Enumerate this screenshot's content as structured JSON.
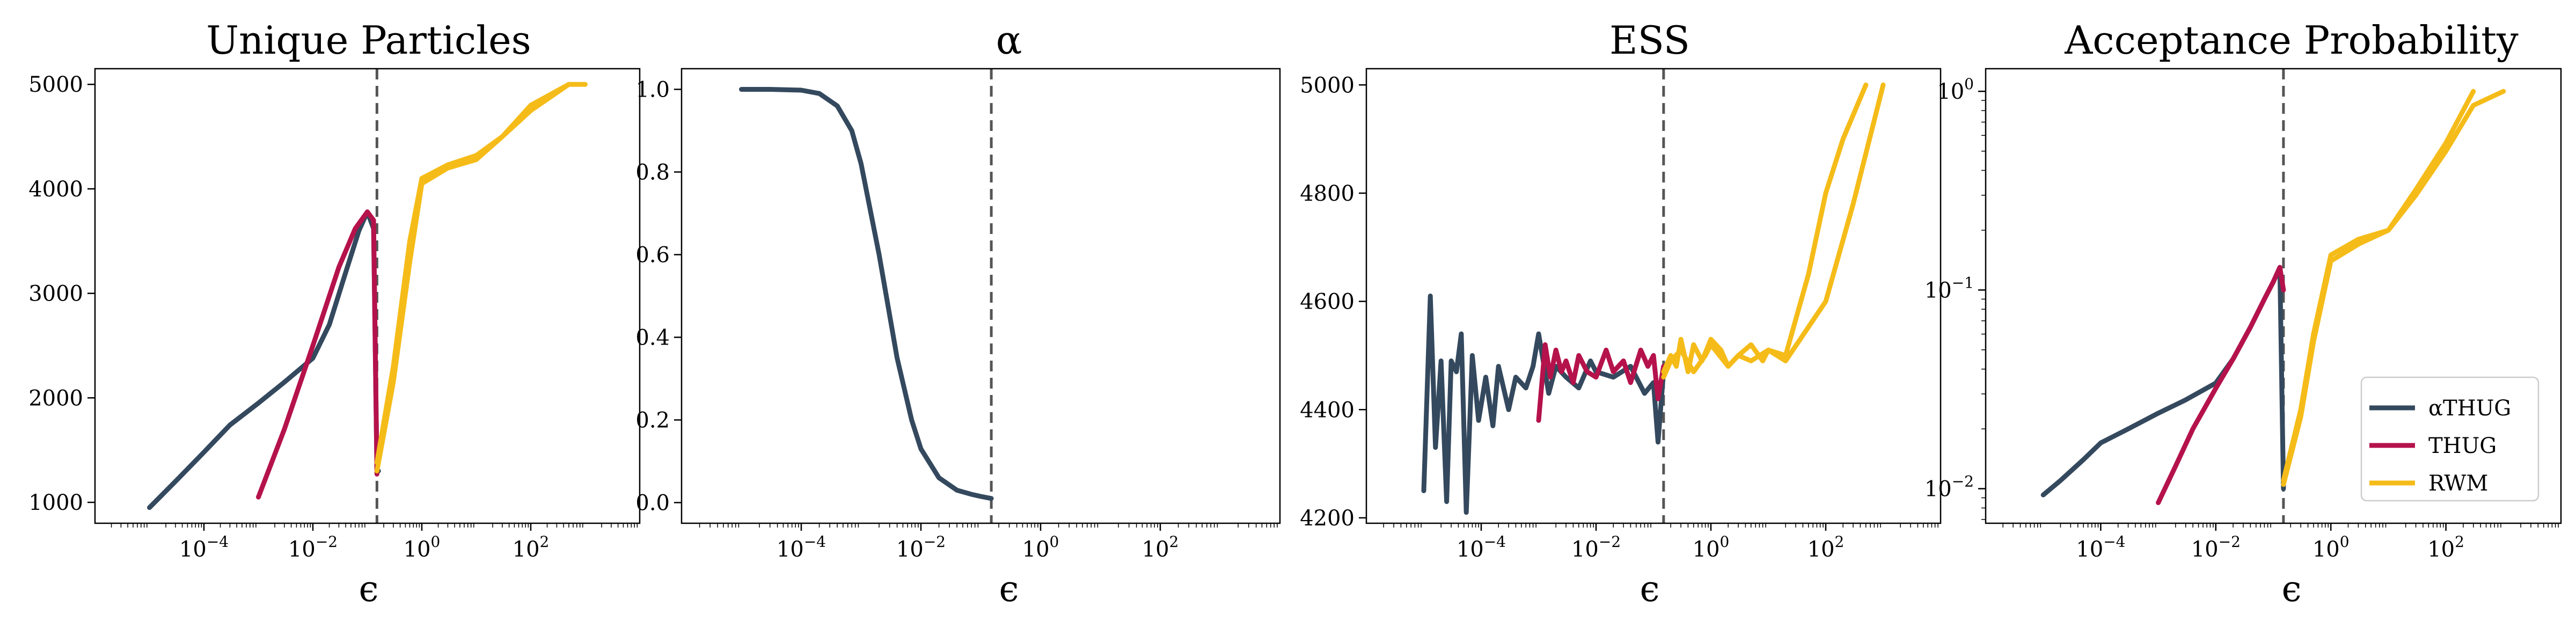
{
  "colors": {
    "alpha_thug": "#34495e",
    "thug": "#b5124b",
    "rwm": "#f5bc19"
  },
  "legend": [
    "αTHUG",
    "THUG",
    "RWM"
  ],
  "chart_data": [
    {
      "type": "line",
      "title": "Unique Particles",
      "xlabel": "ϵ",
      "xscale": "log",
      "yscale": "linear",
      "xlim": [
        1e-06,
        10000
      ],
      "ylim": [
        800,
        5150
      ],
      "xticks": [
        -4,
        -2,
        0,
        2
      ],
      "yticks": [
        1000,
        2000,
        3000,
        4000,
        5000
      ],
      "ytick_labels": [
        "1000",
        "2000",
        "3000",
        "4000",
        "5000"
      ],
      "vline": 0.15,
      "series": [
        {
          "key": "alpha_thug",
          "x": [
            1e-05,
            3e-05,
            0.0001,
            0.0003,
            0.001,
            0.003,
            0.01,
            0.02,
            0.04,
            0.07,
            0.1,
            0.13,
            0.15,
            0.16
          ],
          "y": [
            950,
            1200,
            1480,
            1740,
            1950,
            2150,
            2380,
            2700,
            3200,
            3600,
            3780,
            3620,
            1300,
            1300
          ]
        },
        {
          "key": "thug",
          "x": [
            0.001,
            0.003,
            0.01,
            0.03,
            0.06,
            0.1,
            0.13,
            0.15
          ],
          "y": [
            1050,
            1700,
            2500,
            3250,
            3620,
            3780,
            3700,
            1270
          ]
        },
        {
          "key": "rwm",
          "x": [
            0.15,
            0.3,
            0.6,
            1,
            3,
            10,
            30,
            100,
            500,
            1000
          ],
          "y": [
            1380,
            2300,
            3500,
            4100,
            4230,
            4320,
            4500,
            4750,
            5000,
            5000
          ]
        },
        {
          "key": "rwm",
          "x": [
            0.15,
            0.3,
            0.6,
            1,
            3,
            10,
            30,
            100,
            500
          ],
          "y": [
            1300,
            2150,
            3300,
            4050,
            4200,
            4280,
            4500,
            4800,
            5000
          ]
        }
      ]
    },
    {
      "type": "line",
      "title": "α",
      "xlabel": "ϵ",
      "xscale": "log",
      "yscale": "linear",
      "xlim": [
        1e-06,
        10000
      ],
      "ylim": [
        -0.05,
        1.05
      ],
      "xticks": [
        -4,
        -2,
        0,
        2
      ],
      "yticks": [
        0,
        0.2,
        0.4,
        0.6,
        0.8,
        1.0
      ],
      "ytick_labels": [
        "0.0",
        "0.2",
        "0.4",
        "0.6",
        "0.8",
        "1.0"
      ],
      "vline": 0.15,
      "series": [
        {
          "key": "alpha_thug",
          "x": [
            1e-05,
            3e-05,
            0.0001,
            0.0002,
            0.0004,
            0.0007,
            0.001,
            0.002,
            0.004,
            0.007,
            0.01,
            0.02,
            0.04,
            0.07,
            0.1,
            0.15
          ],
          "y": [
            1.0,
            1.0,
            0.998,
            0.99,
            0.96,
            0.9,
            0.82,
            0.6,
            0.35,
            0.2,
            0.13,
            0.06,
            0.03,
            0.02,
            0.015,
            0.01
          ]
        }
      ]
    },
    {
      "type": "line",
      "title": "ESS",
      "xlabel": "ϵ",
      "xscale": "log",
      "yscale": "linear",
      "xlim": [
        1e-06,
        10000
      ],
      "ylim": [
        4190,
        5030
      ],
      "xticks": [
        -4,
        -2,
        0,
        2
      ],
      "yticks": [
        4200,
        4400,
        4600,
        4800,
        5000
      ],
      "ytick_labels": [
        "4200",
        "4400",
        "4600",
        "4800",
        "5000"
      ],
      "vline": 0.15,
      "series": [
        {
          "key": "alpha_thug",
          "x": [
            1e-05,
            1.3e-05,
            1.6e-05,
            2e-05,
            2.5e-05,
            3e-05,
            3.7e-05,
            4.5e-05,
            5.5e-05,
            7e-05,
            9e-05,
            0.00012,
            0.00016,
            0.0002,
            0.0003,
            0.0004,
            0.0006,
            0.0008,
            0.001,
            0.0015,
            0.002,
            0.003,
            0.005,
            0.008,
            0.01,
            0.02,
            0.04,
            0.07,
            0.1,
            0.12,
            0.15
          ],
          "y": [
            4250,
            4610,
            4330,
            4490,
            4230,
            4490,
            4470,
            4540,
            4210,
            4500,
            4380,
            4460,
            4370,
            4480,
            4400,
            4460,
            4440,
            4480,
            4540,
            4430,
            4480,
            4460,
            4440,
            4490,
            4470,
            4460,
            4480,
            4430,
            4450,
            4340,
            4470
          ]
        },
        {
          "key": "thug",
          "x": [
            0.001,
            0.0013,
            0.0016,
            0.002,
            0.0025,
            0.003,
            0.004,
            0.005,
            0.007,
            0.01,
            0.015,
            0.02,
            0.03,
            0.04,
            0.06,
            0.08,
            0.1,
            0.12,
            0.15
          ],
          "y": [
            4380,
            4520,
            4460,
            4510,
            4470,
            4490,
            4450,
            4500,
            4470,
            4460,
            4510,
            4470,
            4490,
            4450,
            4510,
            4480,
            4500,
            4420,
            4480
          ]
        },
        {
          "key": "rwm",
          "x": [
            0.15,
            0.2,
            0.25,
            0.3,
            0.4,
            0.5,
            0.7,
            1,
            1.5,
            2,
            3,
            5,
            8,
            10,
            20,
            50,
            100,
            200,
            500
          ],
          "y": [
            4470,
            4500,
            4480,
            4530,
            4470,
            4520,
            4490,
            4530,
            4510,
            4480,
            4500,
            4520,
            4490,
            4510,
            4500,
            4650,
            4800,
            4900,
            5000
          ]
        },
        {
          "key": "rwm",
          "x": [
            0.15,
            0.2,
            0.3,
            0.5,
            0.8,
            1,
            2,
            3,
            5,
            10,
            20,
            100,
            300,
            1000
          ],
          "y": [
            4460,
            4490,
            4510,
            4470,
            4500,
            4520,
            4480,
            4500,
            4490,
            4510,
            4490,
            4600,
            4780,
            5000
          ]
        }
      ]
    },
    {
      "type": "line",
      "title": "Acceptance Probability",
      "xlabel": "ϵ",
      "xscale": "log",
      "yscale": "log",
      "xlim": [
        1e-06,
        10000
      ],
      "ylim": [
        0.0067,
        1.3
      ],
      "xticks": [
        -4,
        -2,
        0,
        2
      ],
      "yticks": [
        -2,
        -1,
        0
      ],
      "vline": 0.15,
      "legend_position": "lower right",
      "series": [
        {
          "key": "alpha_thug",
          "x": [
            1e-05,
            2e-05,
            5e-05,
            0.0001,
            0.0003,
            0.001,
            0.003,
            0.01,
            0.02,
            0.04,
            0.07,
            0.1,
            0.13,
            0.15
          ],
          "y": [
            0.0093,
            0.011,
            0.014,
            0.017,
            0.02,
            0.024,
            0.028,
            0.034,
            0.045,
            0.065,
            0.09,
            0.11,
            0.13,
            0.01
          ]
        },
        {
          "key": "thug",
          "x": [
            0.001,
            0.002,
            0.004,
            0.01,
            0.02,
            0.04,
            0.07,
            0.1,
            0.13,
            0.15
          ],
          "y": [
            0.0085,
            0.013,
            0.02,
            0.032,
            0.045,
            0.065,
            0.09,
            0.11,
            0.13,
            0.1
          ]
        },
        {
          "key": "rwm",
          "x": [
            0.15,
            0.3,
            0.5,
            1,
            3,
            10,
            30,
            100,
            300,
            1000
          ],
          "y": [
            0.011,
            0.025,
            0.06,
            0.15,
            0.18,
            0.2,
            0.3,
            0.5,
            0.85,
            1.0
          ]
        },
        {
          "key": "rwm",
          "x": [
            0.15,
            0.3,
            0.5,
            1,
            3,
            10,
            30,
            100,
            300
          ],
          "y": [
            0.0105,
            0.023,
            0.055,
            0.14,
            0.17,
            0.2,
            0.32,
            0.55,
            1.0
          ]
        }
      ]
    }
  ]
}
